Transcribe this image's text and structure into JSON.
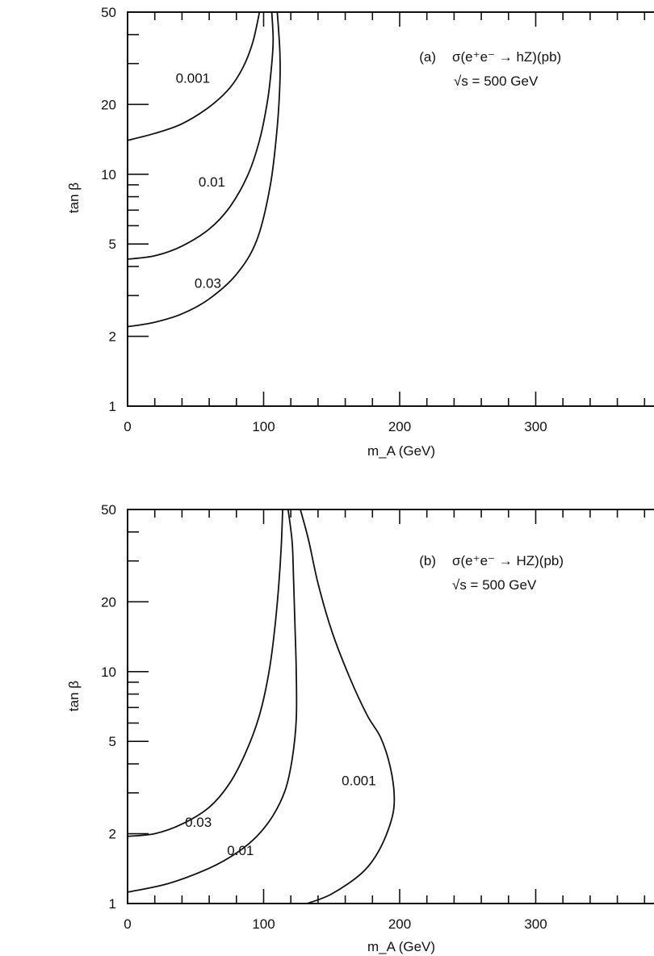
{
  "chart_data": [
    {
      "type": "line",
      "panel": "(a)",
      "title": "σ(e⁺e⁻ → hZ)(pb)",
      "subtitle": "√s = 500 GeV",
      "xlabel": "m_A (GeV)",
      "ylabel": "tan β",
      "xlim": [
        0,
        400
      ],
      "ylim": [
        1,
        50
      ],
      "yscale": "log",
      "xticks": [
        0,
        100,
        200,
        300
      ],
      "yticks": [
        1,
        2,
        5,
        10,
        20,
        50
      ],
      "series": [
        {
          "name": "0.001",
          "label_at": [
            48,
            26
          ],
          "points": [
            [
              0,
              14
            ],
            [
              20,
              15
            ],
            [
              40,
              16.5
            ],
            [
              60,
              19.5
            ],
            [
              75,
              23.5
            ],
            [
              85,
              29
            ],
            [
              92,
              37
            ],
            [
              97,
              50
            ]
          ]
        },
        {
          "name": "0.01",
          "label_at": [
            62,
            9.3
          ],
          "points": [
            [
              0,
              4.3
            ],
            [
              20,
              4.45
            ],
            [
              40,
              4.9
            ],
            [
              60,
              5.8
            ],
            [
              75,
              7.2
            ],
            [
              88,
              9.8
            ],
            [
              97,
              14
            ],
            [
              103,
              21
            ],
            [
              106,
              30
            ],
            [
              107,
              38
            ],
            [
              106,
              50
            ]
          ]
        },
        {
          "name": "0.03",
          "label_at": [
            59,
            3.4
          ],
          "points": [
            [
              0,
              2.2
            ],
            [
              20,
              2.3
            ],
            [
              40,
              2.5
            ],
            [
              60,
              2.9
            ],
            [
              80,
              3.7
            ],
            [
              95,
              5.2
            ],
            [
              105,
              9
            ],
            [
              110,
              16
            ],
            [
              112,
              25
            ],
            [
              112,
              33
            ],
            [
              111,
              42
            ],
            [
              110,
              50
            ]
          ]
        }
      ]
    },
    {
      "type": "line",
      "panel": "(b)",
      "title": "σ(e⁺e⁻ → HZ)(pb)",
      "subtitle": "√s = 500 GeV",
      "xlabel": "m_A (GeV)",
      "ylabel": "tan β",
      "xlim": [
        0,
        400
      ],
      "ylim": [
        1,
        50
      ],
      "yscale": "log",
      "xticks": [
        0,
        100,
        200,
        300
      ],
      "yticks": [
        1,
        2,
        5,
        10,
        20,
        50
      ],
      "series": [
        {
          "name": "0.03",
          "label_at": [
            52,
            2.25
          ],
          "points": [
            [
              0,
              1.95
            ],
            [
              20,
              2.0
            ],
            [
              40,
              2.2
            ],
            [
              60,
              2.6
            ],
            [
              75,
              3.3
            ],
            [
              87,
              4.5
            ],
            [
              97,
              6.5
            ],
            [
              104,
              10
            ],
            [
              108,
              15
            ],
            [
              111,
              23
            ],
            [
              113,
              35
            ],
            [
              114,
              50
            ]
          ]
        },
        {
          "name": "0.01",
          "label_at": [
            83,
            1.7
          ],
          "points": [
            [
              0,
              1.12
            ],
            [
              30,
              1.22
            ],
            [
              60,
              1.42
            ],
            [
              80,
              1.65
            ],
            [
              95,
              1.95
            ],
            [
              107,
              2.4
            ],
            [
              116,
              3.1
            ],
            [
              121,
              4.2
            ],
            [
              124,
              6.2
            ],
            [
              124,
              10
            ],
            [
              123,
              16
            ],
            [
              122,
              25
            ],
            [
              121,
              36
            ],
            [
              118,
              50
            ]
          ]
        },
        {
          "name": "0.001",
          "label_at": [
            170,
            3.4
          ],
          "points": [
            [
              132,
              1.0
            ],
            [
              150,
              1.1
            ],
            [
              172,
              1.35
            ],
            [
              185,
              1.7
            ],
            [
              194,
              2.3
            ],
            [
              196,
              2.9
            ],
            [
              193,
              3.9
            ],
            [
              186,
              5.2
            ],
            [
              176,
              6.5
            ],
            [
              163,
              9.5
            ],
            [
              150,
              15
            ],
            [
              140,
              24
            ],
            [
              133,
              37
            ],
            [
              127,
              50
            ]
          ]
        }
      ]
    }
  ]
}
